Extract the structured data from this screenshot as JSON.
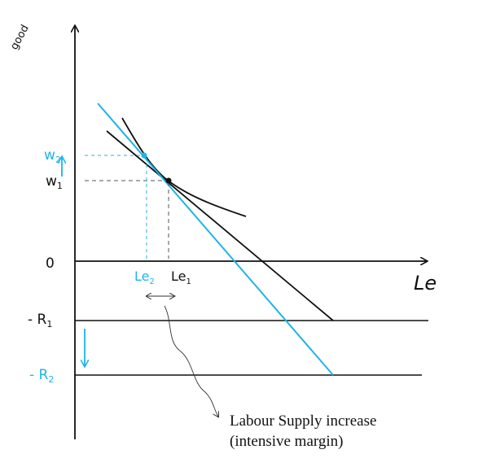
{
  "colors": {
    "ink": "#111111",
    "accent": "#1fb3e8",
    "guide": "#555555"
  },
  "axes": {
    "y_label": "good",
    "x_label": "Le",
    "origin_label": "0"
  },
  "y_ticks": {
    "w2": "w",
    "w2_sub": "2",
    "w1": "w",
    "w1_sub": "1",
    "r1": "- R",
    "r1_sub": "1",
    "r2": "- R",
    "r2_sub": "2"
  },
  "x_ticks": {
    "le2": "Le",
    "le2_sub": "2",
    "le1": "Le",
    "le1_sub": "1"
  },
  "annotation": {
    "line1": "Labour Supply increase",
    "line2": "(intensive margin)"
  }
}
